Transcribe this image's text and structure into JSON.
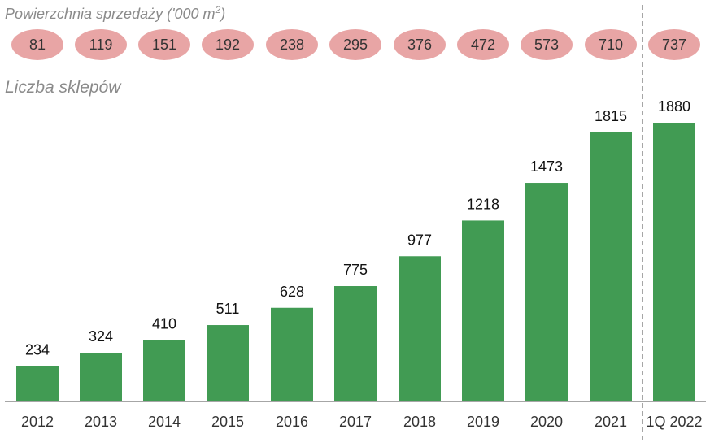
{
  "chart_data": {
    "type": "bar",
    "title": "Liczba sklepów",
    "categories": [
      "2012",
      "2013",
      "2014",
      "2015",
      "2016",
      "2017",
      "2018",
      "2019",
      "2020",
      "2021",
      "1Q 2022"
    ],
    "values": [
      234,
      324,
      410,
      511,
      628,
      775,
      977,
      1218,
      1473,
      1815,
      1880
    ],
    "ylim": [
      0,
      1880
    ],
    "secondary": {
      "title_prefix": "Powierzchnia sprzedaży ('000 m",
      "title_sup": "2",
      "title_suffix": ")",
      "values": [
        81,
        119,
        151,
        192,
        238,
        295,
        376,
        472,
        573,
        710,
        737
      ]
    },
    "colors": {
      "bar": "#419b53",
      "oval": "#e8a5a5",
      "axis": "#888888",
      "divider": "#888888"
    }
  }
}
